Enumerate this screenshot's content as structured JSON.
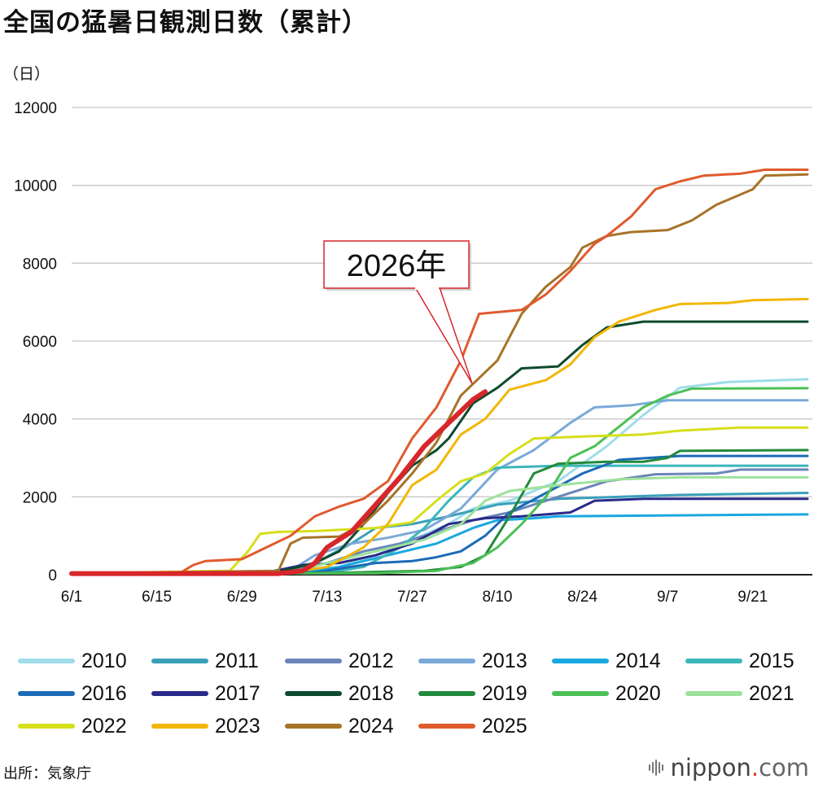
{
  "title": "全国の猛暑日観測日数（累計）",
  "unit": "（日）",
  "source": "出所：気象庁",
  "brand": {
    "name": "nippon",
    "dot": ".",
    "suffix": "com"
  },
  "callout": "2026年",
  "chart_data": {
    "type": "line",
    "title": "全国の猛暑日観測日数（累計）",
    "ylabel": "（日）",
    "ylim": [
      0,
      12000
    ],
    "yticks": [
      0,
      2000,
      4000,
      6000,
      8000,
      10000,
      12000
    ],
    "xlim": [
      0,
      121
    ],
    "xtick_labels": [
      "6/1",
      "6/15",
      "6/29",
      "7/13",
      "7/27",
      "8/10",
      "8/24",
      "9/7",
      "9/21"
    ],
    "xtick_days": [
      0,
      14,
      28,
      42,
      56,
      70,
      84,
      98,
      112
    ],
    "grid": "horizontal",
    "legend": "bottom",
    "series": [
      {
        "name": "2010",
        "color": "#9fdde9",
        "width": 3,
        "points": [
          [
            0,
            30
          ],
          [
            30,
            40
          ],
          [
            44,
            200
          ],
          [
            50,
            500
          ],
          [
            56,
            900
          ],
          [
            62,
            1300
          ],
          [
            66,
            1700
          ],
          [
            72,
            1900
          ],
          [
            80,
            2400
          ],
          [
            88,
            3300
          ],
          [
            94,
            4100
          ],
          [
            100,
            4800
          ],
          [
            108,
            4950
          ],
          [
            121,
            5020
          ]
        ]
      },
      {
        "name": "2011",
        "color": "#3aa0b8",
        "width": 3,
        "points": [
          [
            0,
            30
          ],
          [
            32,
            60
          ],
          [
            40,
            300
          ],
          [
            46,
            800
          ],
          [
            50,
            1200
          ],
          [
            56,
            1300
          ],
          [
            62,
            1500
          ],
          [
            70,
            1800
          ],
          [
            80,
            1950
          ],
          [
            90,
            2000
          ],
          [
            100,
            2050
          ],
          [
            121,
            2100
          ]
        ]
      },
      {
        "name": "2012",
        "color": "#6b86b8",
        "width": 3,
        "points": [
          [
            0,
            30
          ],
          [
            34,
            50
          ],
          [
            42,
            300
          ],
          [
            48,
            600
          ],
          [
            54,
            800
          ],
          [
            60,
            1100
          ],
          [
            66,
            1400
          ],
          [
            72,
            1600
          ],
          [
            80,
            2000
          ],
          [
            88,
            2400
          ],
          [
            96,
            2580
          ],
          [
            106,
            2600
          ],
          [
            110,
            2700
          ],
          [
            121,
            2700
          ]
        ]
      },
      {
        "name": "2013",
        "color": "#7ba9d8",
        "width": 3,
        "points": [
          [
            0,
            30
          ],
          [
            36,
            100
          ],
          [
            40,
            500
          ],
          [
            46,
            800
          ],
          [
            52,
            950
          ],
          [
            58,
            1150
          ],
          [
            64,
            1700
          ],
          [
            70,
            2700
          ],
          [
            76,
            3200
          ],
          [
            82,
            3900
          ],
          [
            86,
            4300
          ],
          [
            92,
            4350
          ],
          [
            98,
            4480
          ],
          [
            121,
            4480
          ]
        ]
      },
      {
        "name": "2014",
        "color": "#19a8e0",
        "width": 3,
        "points": [
          [
            0,
            30
          ],
          [
            38,
            50
          ],
          [
            44,
            200
          ],
          [
            52,
            500
          ],
          [
            60,
            800
          ],
          [
            66,
            1200
          ],
          [
            70,
            1400
          ],
          [
            76,
            1450
          ],
          [
            80,
            1500
          ],
          [
            121,
            1550
          ]
        ]
      },
      {
        "name": "2015",
        "color": "#3bb6bc",
        "width": 3,
        "points": [
          [
            0,
            30
          ],
          [
            42,
            50
          ],
          [
            48,
            200
          ],
          [
            54,
            700
          ],
          [
            58,
            1200
          ],
          [
            62,
            1900
          ],
          [
            66,
            2500
          ],
          [
            70,
            2750
          ],
          [
            80,
            2800
          ],
          [
            121,
            2800
          ]
        ]
      },
      {
        "name": "2016",
        "color": "#1c6bb8",
        "width": 3,
        "points": [
          [
            0,
            30
          ],
          [
            40,
            60
          ],
          [
            50,
            300
          ],
          [
            56,
            350
          ],
          [
            60,
            450
          ],
          [
            64,
            600
          ],
          [
            68,
            1000
          ],
          [
            72,
            1600
          ],
          [
            78,
            2100
          ],
          [
            84,
            2600
          ],
          [
            90,
            2950
          ],
          [
            100,
            3050
          ],
          [
            121,
            3050
          ]
        ]
      },
      {
        "name": "2017",
        "color": "#2a2a8a",
        "width": 3,
        "points": [
          [
            0,
            30
          ],
          [
            32,
            50
          ],
          [
            38,
            250
          ],
          [
            44,
            300
          ],
          [
            50,
            500
          ],
          [
            56,
            800
          ],
          [
            62,
            1300
          ],
          [
            68,
            1450
          ],
          [
            74,
            1500
          ],
          [
            82,
            1600
          ],
          [
            86,
            1900
          ],
          [
            94,
            1950
          ],
          [
            121,
            1950
          ]
        ]
      },
      {
        "name": "2018",
        "color": "#0e4a2e",
        "width": 3,
        "points": [
          [
            0,
            30
          ],
          [
            34,
            80
          ],
          [
            40,
            300
          ],
          [
            44,
            600
          ],
          [
            48,
            1300
          ],
          [
            52,
            2100
          ],
          [
            56,
            2800
          ],
          [
            60,
            3200
          ],
          [
            62,
            3500
          ],
          [
            66,
            4400
          ],
          [
            70,
            4800
          ],
          [
            74,
            5300
          ],
          [
            80,
            5350
          ],
          [
            84,
            5900
          ],
          [
            88,
            6350
          ],
          [
            94,
            6500
          ],
          [
            121,
            6500
          ]
        ]
      },
      {
        "name": "2019",
        "color": "#228a3c",
        "width": 3,
        "points": [
          [
            0,
            30
          ],
          [
            44,
            50
          ],
          [
            58,
            100
          ],
          [
            64,
            200
          ],
          [
            68,
            500
          ],
          [
            72,
            1500
          ],
          [
            76,
            2600
          ],
          [
            80,
            2850
          ],
          [
            88,
            2900
          ],
          [
            94,
            2900
          ],
          [
            98,
            3000
          ],
          [
            100,
            3180
          ],
          [
            121,
            3200
          ]
        ]
      },
      {
        "name": "2020",
        "color": "#4cc056",
        "width": 3,
        "points": [
          [
            0,
            30
          ],
          [
            50,
            40
          ],
          [
            60,
            100
          ],
          [
            66,
            300
          ],
          [
            70,
            700
          ],
          [
            74,
            1300
          ],
          [
            78,
            2000
          ],
          [
            82,
            3000
          ],
          [
            86,
            3300
          ],
          [
            90,
            3800
          ],
          [
            94,
            4300
          ],
          [
            98,
            4600
          ],
          [
            102,
            4780
          ],
          [
            121,
            4790
          ]
        ]
      },
      {
        "name": "2021",
        "color": "#9ce29a",
        "width": 3,
        "points": [
          [
            0,
            30
          ],
          [
            36,
            60
          ],
          [
            42,
            300
          ],
          [
            50,
            600
          ],
          [
            58,
            900
          ],
          [
            64,
            1300
          ],
          [
            68,
            1900
          ],
          [
            72,
            2150
          ],
          [
            80,
            2300
          ],
          [
            90,
            2450
          ],
          [
            100,
            2500
          ],
          [
            121,
            2500
          ]
        ]
      },
      {
        "name": "2022",
        "color": "#d6df1a",
        "width": 3,
        "points": [
          [
            0,
            30
          ],
          [
            26,
            100
          ],
          [
            29,
            600
          ],
          [
            31,
            1050
          ],
          [
            34,
            1100
          ],
          [
            40,
            1120
          ],
          [
            50,
            1200
          ],
          [
            56,
            1350
          ],
          [
            60,
            1900
          ],
          [
            64,
            2400
          ],
          [
            68,
            2600
          ],
          [
            72,
            3100
          ],
          [
            76,
            3500
          ],
          [
            84,
            3550
          ],
          [
            94,
            3600
          ],
          [
            100,
            3700
          ],
          [
            110,
            3780
          ],
          [
            121,
            3780
          ]
        ]
      },
      {
        "name": "2023",
        "color": "#f2b705",
        "width": 3,
        "points": [
          [
            0,
            30
          ],
          [
            36,
            60
          ],
          [
            42,
            200
          ],
          [
            48,
            700
          ],
          [
            52,
            1300
          ],
          [
            56,
            2300
          ],
          [
            60,
            2700
          ],
          [
            64,
            3600
          ],
          [
            68,
            4000
          ],
          [
            72,
            4750
          ],
          [
            78,
            5000
          ],
          [
            82,
            5400
          ],
          [
            86,
            6100
          ],
          [
            90,
            6500
          ],
          [
            96,
            6800
          ],
          [
            100,
            6950
          ],
          [
            108,
            6980
          ],
          [
            112,
            7050
          ],
          [
            121,
            7080
          ]
        ]
      },
      {
        "name": "2024",
        "color": "#a87327",
        "width": 3,
        "points": [
          [
            0,
            30
          ],
          [
            34,
            100
          ],
          [
            36,
            800
          ],
          [
            38,
            950
          ],
          [
            44,
            980
          ],
          [
            48,
            1300
          ],
          [
            52,
            1900
          ],
          [
            56,
            2600
          ],
          [
            60,
            3400
          ],
          [
            64,
            4600
          ],
          [
            70,
            5500
          ],
          [
            74,
            6700
          ],
          [
            78,
            7400
          ],
          [
            82,
            7900
          ],
          [
            84,
            8400
          ],
          [
            88,
            8700
          ],
          [
            92,
            8800
          ],
          [
            98,
            8850
          ],
          [
            102,
            9100
          ],
          [
            106,
            9500
          ],
          [
            112,
            9900
          ],
          [
            114,
            10250
          ],
          [
            121,
            10280
          ]
        ]
      },
      {
        "name": "2025",
        "color": "#e05a2e",
        "width": 3,
        "points": [
          [
            0,
            30
          ],
          [
            18,
            60
          ],
          [
            20,
            250
          ],
          [
            22,
            350
          ],
          [
            28,
            400
          ],
          [
            32,
            700
          ],
          [
            36,
            1000
          ],
          [
            40,
            1500
          ],
          [
            44,
            1750
          ],
          [
            48,
            1950
          ],
          [
            52,
            2400
          ],
          [
            56,
            3500
          ],
          [
            60,
            4300
          ],
          [
            64,
            5500
          ],
          [
            67,
            6700
          ],
          [
            74,
            6800
          ],
          [
            78,
            7200
          ],
          [
            82,
            7800
          ],
          [
            86,
            8500
          ],
          [
            88,
            8700
          ],
          [
            92,
            9200
          ],
          [
            96,
            9900
          ],
          [
            100,
            10100
          ],
          [
            104,
            10250
          ],
          [
            110,
            10300
          ],
          [
            114,
            10400
          ],
          [
            121,
            10400
          ]
        ]
      },
      {
        "name": "2026年",
        "color": "#d8262a",
        "width": 6,
        "points": [
          [
            0,
            30
          ],
          [
            34,
            30
          ],
          [
            38,
            100
          ],
          [
            40,
            300
          ],
          [
            42,
            700
          ],
          [
            46,
            1100
          ],
          [
            50,
            1800
          ],
          [
            54,
            2500
          ],
          [
            58,
            3300
          ],
          [
            62,
            3900
          ],
          [
            66,
            4500
          ],
          [
            68,
            4700
          ]
        ]
      }
    ]
  },
  "legend_items": [
    {
      "label": "2010",
      "color": "#9fdde9"
    },
    {
      "label": "2011",
      "color": "#3aa0b8"
    },
    {
      "label": "2012",
      "color": "#6b86b8"
    },
    {
      "label": "2013",
      "color": "#7ba9d8"
    },
    {
      "label": "2014",
      "color": "#19a8e0"
    },
    {
      "label": "2015",
      "color": "#3bb6bc"
    },
    {
      "label": "2016",
      "color": "#1c6bb8"
    },
    {
      "label": "2017",
      "color": "#2a2a8a"
    },
    {
      "label": "2018",
      "color": "#0e4a2e"
    },
    {
      "label": "2019",
      "color": "#228a3c"
    },
    {
      "label": "2020",
      "color": "#4cc056"
    },
    {
      "label": "2021",
      "color": "#9ce29a"
    },
    {
      "label": "2022",
      "color": "#d6df1a"
    },
    {
      "label": "2023",
      "color": "#f2b705"
    },
    {
      "label": "2024",
      "color": "#a87327"
    },
    {
      "label": "2025",
      "color": "#e05a2e"
    }
  ]
}
